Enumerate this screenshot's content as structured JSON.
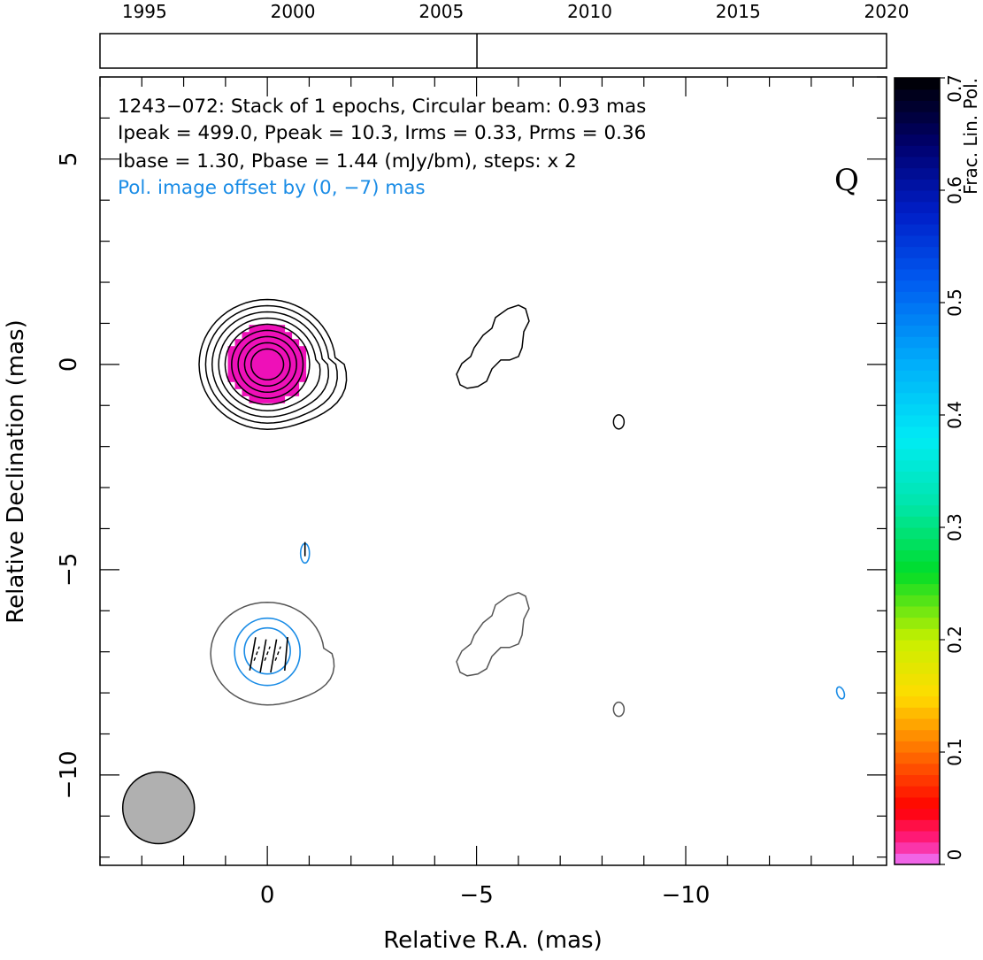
{
  "chart_data": {
    "type": "contour",
    "source": "1243−072",
    "xlabel": "Relative R.A. (mas)",
    "ylabel": "Relative Declination (mas)",
    "xlim": [
      4,
      -14.8
    ],
    "ylim": [
      -12.2,
      7
    ],
    "x_ticks": [
      0,
      -5,
      -10
    ],
    "x_tick_labels": [
      "0",
      "−5",
      "−10"
    ],
    "y_ticks": [
      5,
      0,
      -5,
      -10
    ],
    "y_tick_labels": [
      "5",
      "0",
      "−5",
      "−10"
    ],
    "info_lines": [
      "1243−072: Stack of 1 epochs, Circular beam: 0.93 mas",
      "Ipeak = 499.0, Ppeak = 10.3, Irms = 0.33, Prms = 0.36",
      "Ibase = 1.30, Pbase = 1.44 (mJy/bm), steps: x 2"
    ],
    "offset_note": "Pol. image offset by (0, −7) mas",
    "stokes_letter": "Q",
    "beam": {
      "ra": 2.6,
      "dec": -10.8,
      "diameter_mas": 0.93
    },
    "epochs": {
      "years": [
        1995,
        2000,
        2005,
        2010,
        2015,
        2020
      ],
      "range": [
        1993.5,
        2020
      ],
      "marked": [
        2006.2
      ]
    },
    "colorbar": {
      "label": "Frac. Lin. Pol.",
      "ticks": [
        0,
        0.1,
        0.2,
        0.3,
        0.4,
        0.5,
        0.6,
        0.7
      ],
      "tick_labels": [
        "0",
        "0.1",
        "0.2",
        "0.3",
        "0.4",
        "0.5",
        "0.6",
        "0.7"
      ],
      "range": [
        0,
        0.7
      ]
    },
    "stokes_i_components": [
      {
        "name": "core",
        "ra": 0,
        "dec": 0,
        "levels": 9
      },
      {
        "name": "jet",
        "ra": -5.2,
        "dec": 0.3,
        "levels": 1
      },
      {
        "name": "knot",
        "ra": -8.4,
        "dec": -1.4,
        "levels": 1
      }
    ],
    "frac_pol_core": {
      "ra": 0,
      "dec": 0,
      "radius_mas": 0.8,
      "value": 0.01
    },
    "pol_contours_offset": [
      {
        "ra": 0,
        "dec": -7,
        "levels": 2
      },
      {
        "ra": -0.9,
        "dec": -4.6,
        "levels": 1
      },
      {
        "ra": -13.7,
        "dec": -8.0,
        "levels": 1
      }
    ],
    "evpa_sticks": [
      {
        "ra": 0.35,
        "dec": -7.05,
        "angle_deg": 10
      },
      {
        "ra": 0.1,
        "dec": -7.1,
        "angle_deg": 10
      },
      {
        "ra": -0.15,
        "dec": -7.1,
        "angle_deg": 10
      },
      {
        "ra": -0.45,
        "dec": -7.05,
        "angle_deg": 5
      },
      {
        "ra": -0.9,
        "dec": -4.5,
        "angle_deg": 0
      }
    ]
  },
  "colors": {
    "stokes_i": "#000000",
    "shifted_i": "#555555",
    "pol": "#1a8ce6",
    "frac_pol_fill": "#ee10b8",
    "beam_fill": "#b0b0b0"
  }
}
